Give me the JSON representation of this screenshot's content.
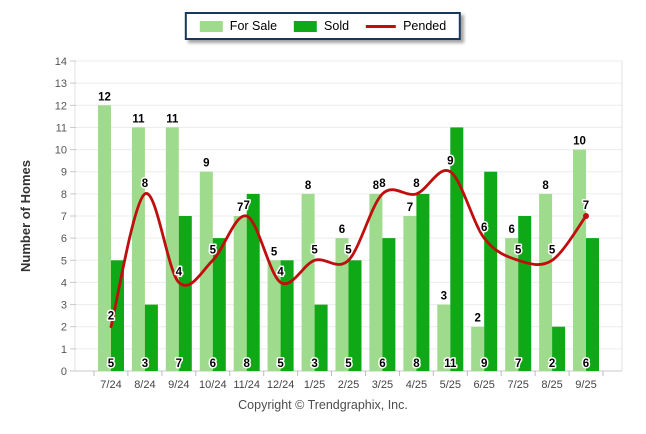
{
  "legend": {
    "items": [
      {
        "label": "For Sale",
        "color": "#9EDB8C",
        "style": "swatch"
      },
      {
        "label": "Sold",
        "color": "#0FA817",
        "style": "swatch"
      },
      {
        "label": "Pended",
        "color": "#C00E0E",
        "style": "line"
      }
    ],
    "border_color": "#17375E"
  },
  "footer": "Copyright © Trendgraphix, Inc.",
  "chart_data": {
    "type": "bar",
    "title": "",
    "xlabel": "",
    "ylabel": "Number of Homes",
    "categories": [
      "7/24",
      "8/24",
      "9/24",
      "10/24",
      "11/24",
      "12/24",
      "1/25",
      "2/25",
      "3/25",
      "4/25",
      "5/25",
      "6/25",
      "7/25",
      "8/25",
      "9/25"
    ],
    "series": [
      {
        "name": "For Sale",
        "type": "bar",
        "color": "#9EDB8C",
        "values": [
          12,
          11,
          11,
          9,
          7,
          5,
          8,
          6,
          8,
          7,
          3,
          2,
          6,
          8,
          10
        ]
      },
      {
        "name": "Sold",
        "type": "bar",
        "color": "#0FA817",
        "values": [
          5,
          3,
          7,
          6,
          8,
          5,
          3,
          5,
          6,
          8,
          11,
          9,
          7,
          2,
          6
        ]
      },
      {
        "name": "Pended",
        "type": "line",
        "color": "#C00E0E",
        "values": [
          2,
          8,
          4,
          5,
          7,
          4,
          5,
          5,
          8,
          8,
          9,
          6,
          5,
          5,
          7
        ]
      }
    ],
    "ylim": [
      0,
      14
    ],
    "yticks": [
      0,
      1,
      2,
      3,
      4,
      5,
      6,
      7,
      8,
      9,
      10,
      11,
      12,
      13,
      14
    ],
    "grid": "horizontal",
    "legend_position": "top-center",
    "data_labels": true
  }
}
